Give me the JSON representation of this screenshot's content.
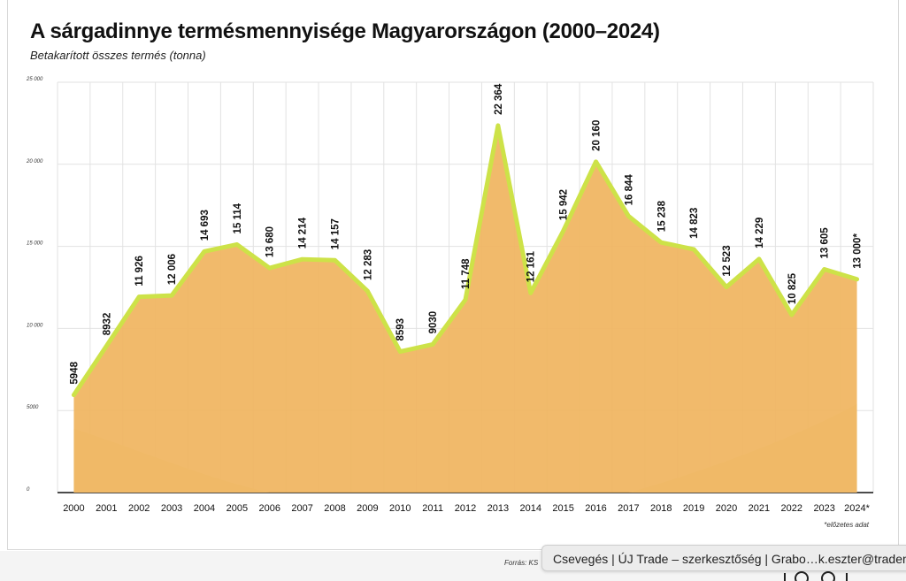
{
  "page": {
    "title": "A sárgadinnye termésmennyisége Magyarországon (2000–2024)",
    "subtitle": "Betakarított összes termés (tonna)",
    "note": "*előzetes adat",
    "source": "Forrás: KS",
    "chat_tab": "Csevegés | ÚJ Trade – szerkesztőség | Grabo…k.eszter@tradema"
  },
  "chart_data": {
    "type": "area",
    "title": "A sárgadinnye termésmennyisége Magyarországon (2000–2024)",
    "subtitle": "Betakarított összes termés (tonna)",
    "xlabel": "",
    "ylabel": "",
    "ylim": [
      0,
      25000
    ],
    "yticks": [
      0,
      5000,
      10000,
      15000,
      20000,
      25000
    ],
    "ytick_labels": [
      "0",
      "5000",
      "10 000",
      "15 000",
      "20 000",
      "25 000"
    ],
    "grid": true,
    "categories": [
      "2000",
      "2001",
      "2002",
      "2003",
      "2004",
      "2005",
      "2006",
      "2007",
      "2008",
      "2009",
      "2010",
      "2011",
      "2012",
      "2013",
      "2014",
      "2015",
      "2016",
      "2017",
      "2018",
      "2019",
      "2020",
      "2021",
      "2022",
      "2023",
      "2024*"
    ],
    "values": [
      5948,
      8932,
      11926,
      12006,
      14693,
      15114,
      13680,
      14214,
      14157,
      12283,
      8593,
      9030,
      11748,
      22364,
      12161,
      15942,
      20160,
      16844,
      15238,
      14823,
      12523,
      14229,
      10825,
      13605,
      13000
    ],
    "value_labels": [
      "5948",
      "8932",
      "11 926",
      "12 006",
      "14 693",
      "15 114",
      "13 680",
      "14 214",
      "14 157",
      "12 283",
      "8593",
      "9030",
      "11 748",
      "22 364",
      "12 161",
      "15 942",
      "20 160",
      "16 844",
      "15 238",
      "14 823",
      "12 523",
      "14 229",
      "10 825",
      "13 605",
      "13 000*"
    ],
    "colors": {
      "fill": "#f0b560",
      "line": "#cde248",
      "decor": "#e6edc6",
      "grid": "#e2e2e2"
    }
  }
}
